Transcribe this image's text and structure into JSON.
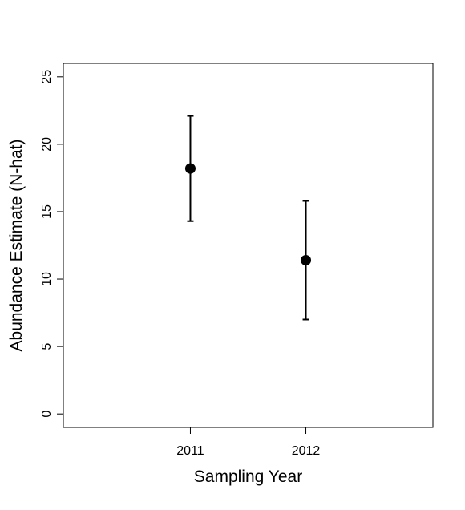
{
  "chart_data": {
    "type": "scatter",
    "title": "",
    "xlabel": "Sampling Year",
    "ylabel": "Abundance Estimate (N-hat)",
    "categories": [
      "2011",
      "2012"
    ],
    "x": [
      2011,
      2012
    ],
    "series": [
      {
        "values": [
          18.2,
          11.4
        ],
        "lower": [
          14.3,
          7.0
        ],
        "upper": [
          22.1,
          15.8
        ]
      }
    ],
    "xlim": [
      2009.9,
      2013.1
    ],
    "ylim": [
      -1,
      26
    ],
    "yticks": [
      "0",
      "5",
      "10",
      "15",
      "20",
      "25"
    ],
    "xticks": [
      "2011",
      "2012"
    ],
    "grid": false,
    "legend": "none",
    "colors": {
      "points": "#000000",
      "error_bars": "#000000",
      "frame": "#000000"
    }
  }
}
